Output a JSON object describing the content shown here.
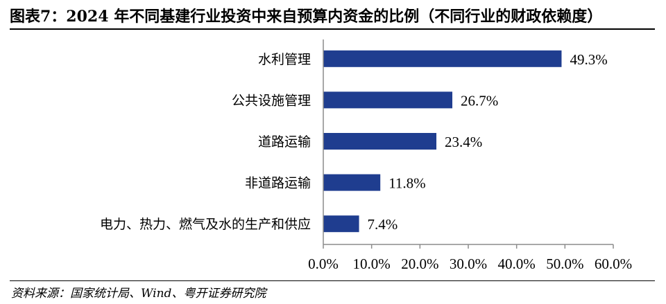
{
  "header": {
    "title": "图表7：2024 年不同基建行业投资中来自预算内资金的比例（不同行业的财政依赖度）"
  },
  "footer": {
    "source": "资料来源：国家统计局、Wind、粤开证券研究院"
  },
  "chart_data": {
    "type": "bar",
    "orientation": "horizontal",
    "categories": [
      "水利管理",
      "公共设施管理",
      "道路运输",
      "非道路运输",
      "电力、热力、燃气及水的生产和供应"
    ],
    "values": [
      49.3,
      26.7,
      23.4,
      11.8,
      7.4
    ],
    "value_labels": [
      "49.3%",
      "26.7%",
      "23.4%",
      "11.8%",
      "7.4%"
    ],
    "xlim": [
      0,
      60
    ],
    "x_ticks": [
      0,
      10,
      20,
      30,
      40,
      50,
      60
    ],
    "x_tick_labels": [
      "0.0%",
      "10.0%",
      "20.0%",
      "30.0%",
      "40.0%",
      "50.0%",
      "60.0%"
    ],
    "bar_color": "#1f3d8f",
    "grid": false,
    "legend": "none"
  }
}
